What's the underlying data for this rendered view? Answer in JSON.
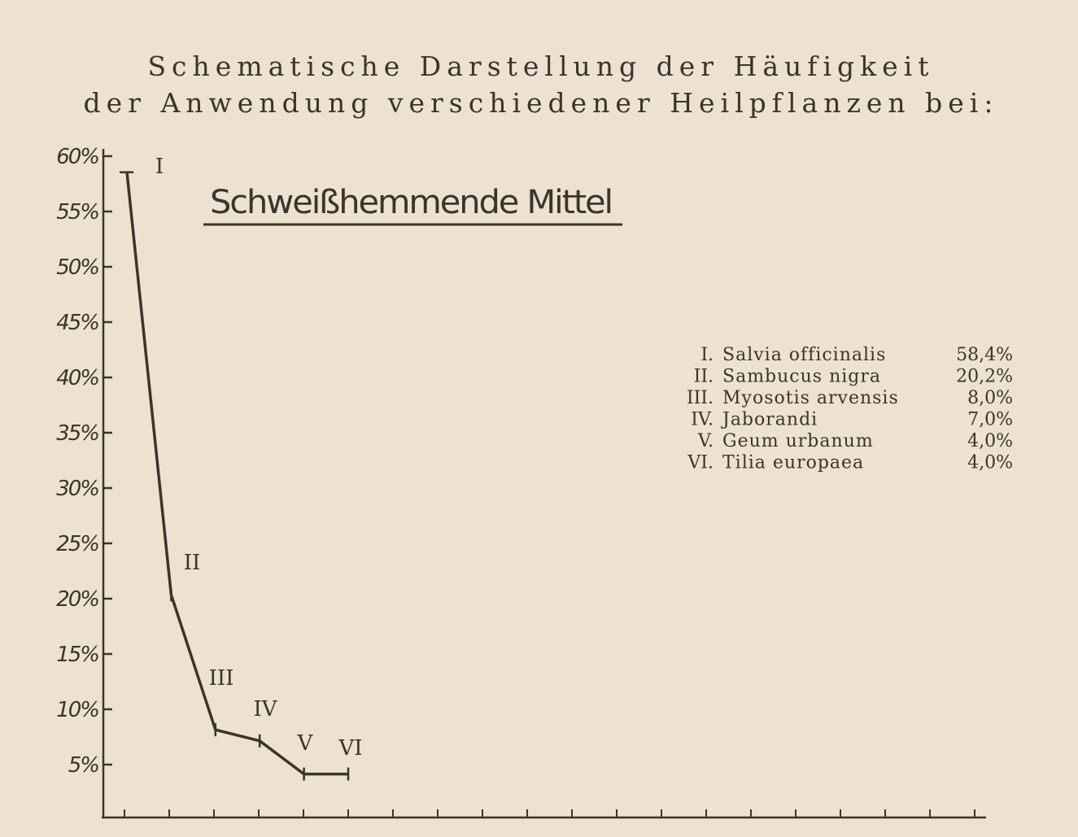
{
  "chart_data": {
    "type": "line",
    "title": [
      "Schematische Darstellung der Häufigkeit",
      "der Anwendung verschiedener Heilpflanzen bei:"
    ],
    "subtitle": "Schweißhemmende Mittel",
    "categories": [
      "I",
      "II",
      "III",
      "IV",
      "V",
      "VI"
    ],
    "values": [
      58.4,
      20.2,
      8.0,
      7.0,
      4.0,
      4.0
    ],
    "ylim": [
      0,
      60
    ],
    "yticks": [
      "5%",
      "10%",
      "15%",
      "20%",
      "25%",
      "30%",
      "35%",
      "40%",
      "45%",
      "50%",
      "55%",
      "60%"
    ],
    "grid": false,
    "legend_position": "right",
    "legend": [
      {
        "numeral": "I.",
        "name": "Salvia officinalis",
        "value": "58,4%"
      },
      {
        "numeral": "II.",
        "name": "Sambucus nigra",
        "value": "20,2%"
      },
      {
        "numeral": "III.",
        "name": "Myosotis arvensis",
        "value": "8,0%"
      },
      {
        "numeral": "IV.",
        "name": "Jaborandi",
        "value": "7,0%"
      },
      {
        "numeral": "V.",
        "name": "Geum urbanum",
        "value": "4,0%"
      },
      {
        "numeral": "VI.",
        "name": "Tilia europaea",
        "value": "4,0%"
      }
    ],
    "colors": {
      "ink": "#3b342c",
      "paper": "#ece2cf"
    }
  }
}
